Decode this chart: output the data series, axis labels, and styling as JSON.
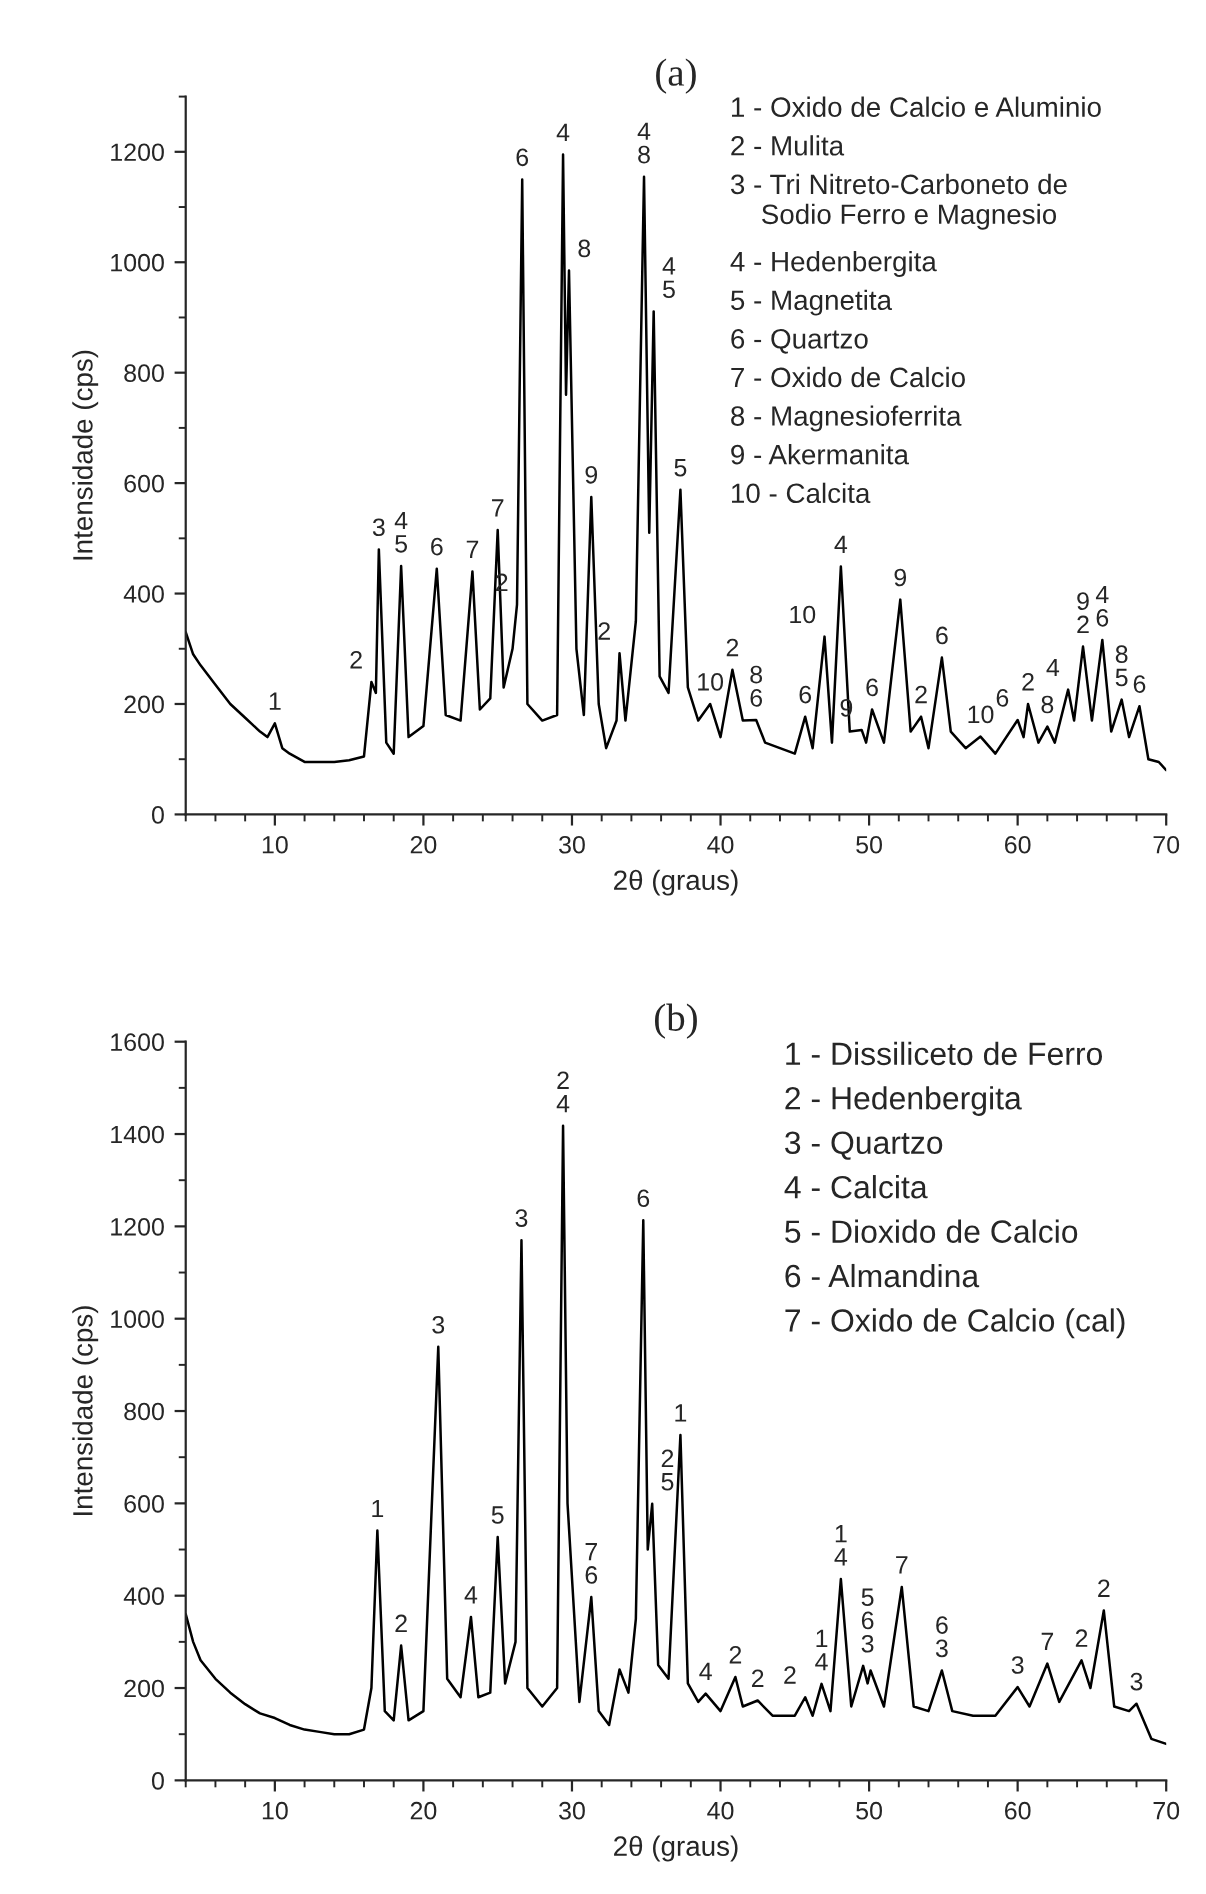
{
  "chart_data": [
    {
      "type": "line",
      "title": "(a)",
      "xlabel": "2θ (graus)",
      "ylabel": "Intensidade (cps)",
      "xlim": [
        4,
        70
      ],
      "xticks": [
        10,
        20,
        30,
        40,
        50,
        60,
        70
      ],
      "ylim": [
        0,
        1300
      ],
      "yticks": [
        0,
        200,
        400,
        600,
        800,
        1000,
        1200
      ],
      "grid": false,
      "series": [
        {
          "color": "#000000",
          "x": [
            4,
            4.5,
            5,
            6,
            7,
            8,
            9,
            9.5,
            10,
            10.5,
            11,
            12,
            13,
            14,
            15,
            16,
            16.5,
            16.8,
            17,
            17.5,
            18,
            18.5,
            19,
            20,
            20.9,
            21.5,
            22.5,
            23.3,
            23.8,
            24.5,
            25,
            25.4,
            26,
            26.3,
            26.65,
            27,
            28,
            29,
            29.4,
            29.6,
            29.8,
            30.3,
            30.8,
            31.3,
            31.8,
            32.3,
            33,
            33.2,
            33.6,
            34.3,
            34.85,
            35.2,
            35.5,
            35.9,
            36.5,
            37.3,
            37.8,
            38.5,
            39.3,
            40,
            40.8,
            41.5,
            42.4,
            43,
            44,
            45,
            45.7,
            46.2,
            47,
            47.5,
            48.1,
            48.7,
            49.5,
            49.8,
            50.2,
            51,
            52.1,
            52.8,
            53.5,
            54,
            54.9,
            55.5,
            56.5,
            57.5,
            58.5,
            60,
            60.4,
            60.7,
            61.4,
            62,
            62.5,
            63.4,
            63.8,
            64.4,
            65,
            65.7,
            66.3,
            67,
            67.5,
            68.2,
            68.8,
            69.5,
            70
          ],
          "values": [
            330,
            290,
            270,
            235,
            200,
            175,
            150,
            140,
            165,
            120,
            110,
            95,
            95,
            95,
            98,
            105,
            240,
            220,
            480,
            130,
            110,
            450,
            140,
            160,
            445,
            180,
            170,
            440,
            190,
            210,
            515,
            230,
            300,
            380,
            1150,
            200,
            170,
            180,
            1195,
            760,
            985,
            300,
            180,
            575,
            200,
            120,
            170,
            292,
            170,
            350,
            1155,
            510,
            911,
            250,
            220,
            588,
            230,
            170,
            200,
            140,
            262,
            170,
            171,
            130,
            120,
            110,
            177,
            120,
            322,
            130,
            449,
            150,
            153,
            130,
            190,
            130,
            389,
            150,
            177,
            120,
            284,
            150,
            120,
            141,
            110,
            171,
            140,
            200,
            130,
            159,
            130,
            226,
            170,
            304,
            170,
            316,
            150,
            208,
            140,
            196,
            100,
            95,
            80
          ]
        }
      ],
      "annotations": [
        "1 - Oxido de Calcio e Aluminio",
        "2 - Mulita",
        "3 - Tri Nitreto-Carboneto de\n    Sodio Ferro e Magnesio",
        "4 - Hedenbergita",
        "5 - Magnetita",
        "6 - Quartzo",
        "7 - Oxido de Calcio",
        "8 - Magnesioferrita",
        "9 - Akermanita",
        "10 - Calcita",
        {
          "text": "1",
          "x": 10,
          "y": 165
        },
        {
          "text": "2",
          "x": 16.5,
          "y": 240
        },
        {
          "text": "3",
          "x": 17,
          "y": 480
        },
        {
          "text": "4\n5",
          "x": 18.5,
          "y": 450
        },
        {
          "text": "6",
          "x": 20.9,
          "y": 445
        },
        {
          "text": "7",
          "x": 23.3,
          "y": 440
        },
        {
          "text": "7",
          "x": 25,
          "y": 515
        },
        {
          "text": "2",
          "x": 26.3,
          "y": 380
        },
        {
          "text": "6",
          "x": 26.65,
          "y": 1150
        },
        {
          "text": "4",
          "x": 29.4,
          "y": 1195
        },
        {
          "text": "8",
          "x": 29.8,
          "y": 985
        },
        {
          "text": "9",
          "x": 31.3,
          "y": 575
        },
        {
          "text": "2",
          "x": 33.2,
          "y": 292
        },
        {
          "text": "4\n8",
          "x": 34.85,
          "y": 1155
        },
        {
          "text": "4\n5",
          "x": 35.5,
          "y": 911
        },
        {
          "text": "5",
          "x": 37.3,
          "y": 588
        },
        {
          "text": "10",
          "x": 39.3,
          "y": 200
        },
        {
          "text": "2",
          "x": 40.8,
          "y": 262
        },
        {
          "text": "8\n6",
          "x": 42.4,
          "y": 171
        },
        {
          "text": "6",
          "x": 45.7,
          "y": 177
        },
        {
          "text": "10",
          "x": 47,
          "y": 322
        },
        {
          "text": "4",
          "x": 48.1,
          "y": 449
        },
        {
          "text": "9",
          "x": 49.5,
          "y": 153
        },
        {
          "text": "6",
          "x": 50.2,
          "y": 190
        },
        {
          "text": "9",
          "x": 52.1,
          "y": 389
        },
        {
          "text": "2",
          "x": 53.5,
          "y": 177
        },
        {
          "text": "6",
          "x": 54.9,
          "y": 284
        },
        {
          "text": "10",
          "x": 57.5,
          "y": 141
        },
        {
          "text": "6",
          "x": 60,
          "y": 171
        },
        {
          "text": "2",
          "x": 60.7,
          "y": 200
        },
        {
          "text": "8",
          "x": 62,
          "y": 159
        },
        {
          "text": "4",
          "x": 63.4,
          "y": 226
        },
        {
          "text": "9\n2",
          "x": 64.4,
          "y": 304
        },
        {
          "text": "4\n6",
          "x": 65.7,
          "y": 316
        },
        {
          "text": "8\n5",
          "x": 67,
          "y": 208
        },
        {
          "text": "6",
          "x": 68.2,
          "y": 196
        }
      ]
    },
    {
      "type": "line",
      "title": "(b)",
      "xlabel": "2θ (graus)",
      "ylabel": "Intensidade (cps)",
      "xlim": [
        4,
        70
      ],
      "xticks": [
        10,
        20,
        30,
        40,
        50,
        60,
        70
      ],
      "ylim": [
        0,
        1600
      ],
      "yticks": [
        0,
        200,
        400,
        600,
        800,
        1000,
        1200,
        1400,
        1600
      ],
      "grid": false,
      "series": [
        {
          "color": "#000000",
          "x": [
            4,
            4.5,
            5,
            6,
            7,
            8,
            9,
            10,
            11,
            12,
            13,
            14,
            15,
            16,
            16.5,
            16.9,
            17.4,
            18,
            18.5,
            19,
            20,
            21,
            21.6,
            22.5,
            23.2,
            23.7,
            24.5,
            25,
            25.5,
            26.2,
            26.6,
            27,
            28,
            29,
            29.4,
            29.7,
            30.5,
            31.3,
            31.8,
            32.5,
            33.2,
            33.8,
            34.3,
            34.8,
            35.1,
            35.4,
            35.8,
            36.5,
            37.3,
            37.8,
            38.5,
            39,
            40,
            41,
            41.5,
            42.5,
            43.5,
            45,
            45.7,
            46.2,
            46.8,
            47.4,
            48.1,
            48.8,
            49.6,
            49.9,
            50.1,
            51,
            52.2,
            53,
            54,
            54.9,
            55.6,
            57,
            58.5,
            60,
            60.8,
            62,
            62.8,
            64.3,
            64.9,
            65.8,
            66.5,
            67.5,
            68,
            69,
            70
          ],
          "values": [
            360,
            300,
            260,
            220,
            190,
            165,
            145,
            135,
            120,
            110,
            105,
            100,
            100,
            110,
            200,
            541,
            150,
            130,
            292,
            130,
            150,
            939,
            220,
            180,
            354,
            180,
            190,
            527,
            210,
            300,
            1170,
            200,
            160,
            200,
            1418,
            600,
            170,
            397,
            150,
            120,
            240,
            190,
            350,
            1213,
            500,
            599,
            250,
            220,
            748,
            210,
            170,
            188,
            150,
            224,
            160,
            173,
            140,
            140,
            180,
            140,
            209,
            150,
            436,
            160,
            248,
            210,
            238,
            160,
            419,
            160,
            150,
            238,
            150,
            140,
            140,
            202,
            160,
            253,
            170,
            260,
            200,
            368,
            160,
            150,
            166,
            90,
            79
          ]
        }
      ],
      "annotations": [
        "1 - Dissiliceto de Ferro",
        "2 - Hedenbergita",
        "3 - Quartzo",
        "4 - Calcita",
        "5 - Dioxido de Calcio",
        "6 - Almandina",
        "7 - Oxido de Calcio (cal)",
        {
          "text": "1",
          "x": 16.9,
          "y": 541
        },
        {
          "text": "2",
          "x": 18.5,
          "y": 292
        },
        {
          "text": "3",
          "x": 21,
          "y": 939
        },
        {
          "text": "4",
          "x": 23.2,
          "y": 354
        },
        {
          "text": "5",
          "x": 25,
          "y": 527
        },
        {
          "text": "3",
          "x": 26.6,
          "y": 1170
        },
        {
          "text": "2\n4",
          "x": 29.4,
          "y": 1418
        },
        {
          "text": "7\n6",
          "x": 31.3,
          "y": 397
        },
        {
          "text": "6",
          "x": 34.8,
          "y": 1213
        },
        {
          "text": "2\n5",
          "x": 35.4,
          "y": 599
        },
        {
          "text": "1",
          "x": 37.3,
          "y": 748
        },
        {
          "text": "4",
          "x": 39,
          "y": 188
        },
        {
          "text": "2",
          "x": 41,
          "y": 224
        },
        {
          "text": "2",
          "x": 42.5,
          "y": 173
        },
        {
          "text": "2",
          "x": 45.7,
          "y": 180
        },
        {
          "text": "1\n4",
          "x": 46.8,
          "y": 209
        },
        {
          "text": "1\n4",
          "x": 48.1,
          "y": 436
        },
        {
          "text": "5\n6\n3",
          "x": 49.9,
          "y": 248
        },
        {
          "text": "7",
          "x": 52.2,
          "y": 419
        },
        {
          "text": "6\n3",
          "x": 54.9,
          "y": 238
        },
        {
          "text": "3",
          "x": 60,
          "y": 202
        },
        {
          "text": "7",
          "x": 62,
          "y": 253
        },
        {
          "text": "2",
          "x": 64.3,
          "y": 260
        },
        {
          "text": "2",
          "x": 65.8,
          "y": 368
        },
        {
          "text": "3",
          "x": 68,
          "y": 166
        }
      ]
    }
  ]
}
